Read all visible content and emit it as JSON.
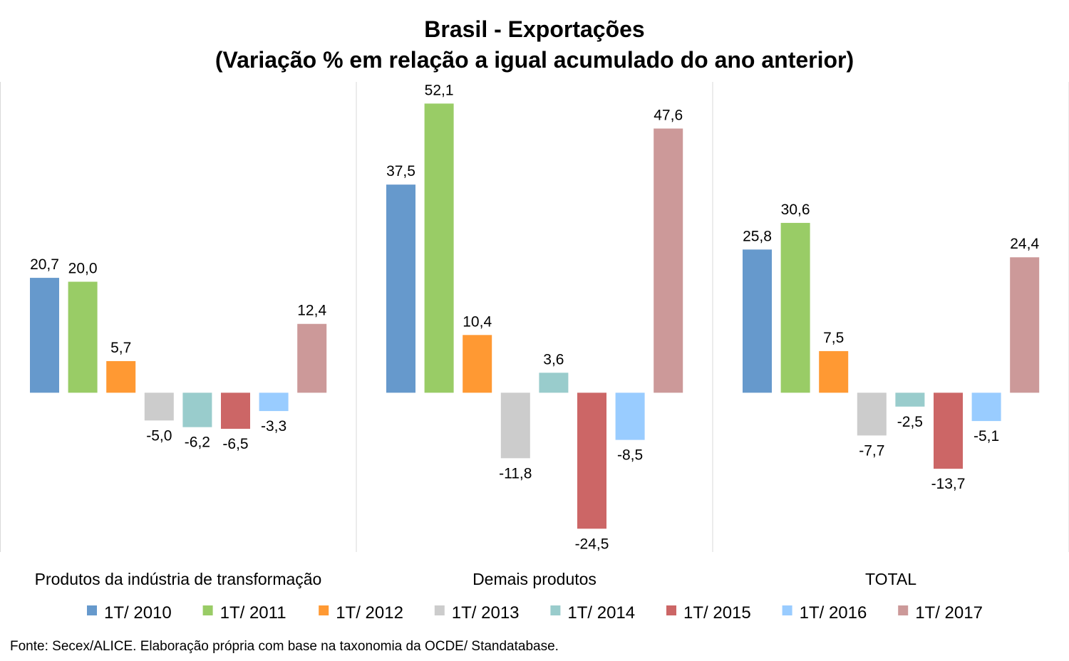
{
  "chart_data": {
    "type": "bar",
    "title": "Brasil - Exportações",
    "subtitle": "(Variação % em relação a igual acumulado do ano anterior)",
    "categories": [
      "Produtos da indústria de transformação",
      "Demais produtos",
      "TOTAL"
    ],
    "series": [
      {
        "name": "1T/ 2010",
        "color": "#6699CC",
        "values": [
          20.7,
          37.5,
          25.8
        ],
        "labels": [
          "20,7",
          "37,5",
          "25,8"
        ]
      },
      {
        "name": "1T/ 2011",
        "color": "#99CC66",
        "values": [
          20.0,
          52.1,
          30.6
        ],
        "labels": [
          "20,0",
          "52,1",
          "30,6"
        ]
      },
      {
        "name": "1T/ 2012",
        "color": "#FF9933",
        "values": [
          5.7,
          10.4,
          7.5
        ],
        "labels": [
          "5,7",
          "10,4",
          "7,5"
        ]
      },
      {
        "name": "1T/ 2013",
        "color": "#CCCCCC",
        "values": [
          -5.0,
          -11.8,
          -7.7
        ],
        "labels": [
          "-5,0",
          "-11,8",
          "-7,7"
        ]
      },
      {
        "name": "1T/ 2014",
        "color": "#99CCCC",
        "values": [
          -6.2,
          3.6,
          -2.5
        ],
        "labels": [
          "-6,2",
          "3,6",
          "-2,5"
        ]
      },
      {
        "name": "1T/ 2015",
        "color": "#CC6666",
        "values": [
          -6.5,
          -24.5,
          -13.7
        ],
        "labels": [
          "-6,5",
          "-24,5",
          "-13,7"
        ]
      },
      {
        "name": "1T/ 2016",
        "color": "#99CCFF",
        "values": [
          -3.3,
          -8.5,
          -5.1
        ],
        "labels": [
          "-3,3",
          "-8,5",
          "-5,1"
        ]
      },
      {
        "name": "1T/ 2017",
        "color": "#CC9999",
        "values": [
          12.4,
          47.6,
          24.4
        ],
        "labels": [
          "12,4",
          "47,6",
          "24,4"
        ]
      }
    ],
    "ylim": [
      -28.7,
      56.0
    ],
    "grid": false,
    "legend_position": "bottom",
    "xlabel": "",
    "ylabel": ""
  },
  "source_note": "Fonte: Secex/ALICE. Elaboração própria com base na taxonomia da OCDE/ Standatabase."
}
